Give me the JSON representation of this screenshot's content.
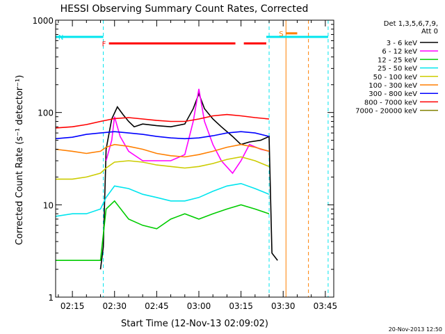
{
  "chart_data": {
    "type": "line",
    "title": "HESSI Observing Summary Count Rates, Corrected",
    "xlabel": "Start Time (12-Nov-13 02:09:02)",
    "ylabel": "Corrected Count Rate (s⁻¹ detector⁻¹)",
    "y_scale": "log",
    "ylim": [
      1,
      1000
    ],
    "xlim": [
      "02:09",
      "03:48"
    ],
    "x_ticks": [
      "02:15",
      "02:30",
      "02:45",
      "03:00",
      "03:15",
      "03:30",
      "03:45"
    ],
    "y_ticks": [
      {
        "value": 1,
        "label": "1"
      },
      {
        "value": 10,
        "label": "10"
      },
      {
        "value": 100,
        "label": "100"
      },
      {
        "value": 1000,
        "label": "1000"
      }
    ],
    "footer_date": "20-Nov-2013 12:50",
    "legend": {
      "header": [
        "Det 1,3,5,6,7,9,",
        "Att 0"
      ],
      "placement": "right"
    },
    "series": [
      {
        "name": "3 - 6 keV",
        "color": "#000000",
        "points": [
          [
            "02:25",
            2.0
          ],
          [
            "02:26",
            3.5
          ],
          [
            "02:27",
            40
          ],
          [
            "02:29",
            85
          ],
          [
            "02:31",
            115
          ],
          [
            "02:33",
            95
          ],
          [
            "02:35",
            80
          ],
          [
            "02:37",
            70
          ],
          [
            "02:40",
            75
          ],
          [
            "02:45",
            72
          ],
          [
            "02:50",
            70
          ],
          [
            "02:55",
            75
          ],
          [
            "02:58",
            110
          ],
          [
            "03:00",
            160
          ],
          [
            "03:02",
            110
          ],
          [
            "03:05",
            85
          ],
          [
            "03:08",
            70
          ],
          [
            "03:12",
            55
          ],
          [
            "03:15",
            45
          ],
          [
            "03:18",
            48
          ],
          [
            "03:22",
            50
          ],
          [
            "03:25",
            55
          ],
          [
            "03:26",
            3.0
          ],
          [
            "03:28",
            2.5
          ]
        ]
      },
      {
        "name": "6 - 12 keV",
        "color": "#ff00ff",
        "points": [
          [
            "02:27",
            30
          ],
          [
            "02:29",
            50
          ],
          [
            "02:30",
            90
          ],
          [
            "02:32",
            55
          ],
          [
            "02:35",
            38
          ],
          [
            "02:40",
            30
          ],
          [
            "02:45",
            30
          ],
          [
            "02:50",
            30
          ],
          [
            "02:55",
            35
          ],
          [
            "02:58",
            80
          ],
          [
            "03:00",
            180
          ],
          [
            "03:02",
            80
          ],
          [
            "03:05",
            45
          ],
          [
            "03:08",
            30
          ],
          [
            "03:12",
            22
          ],
          [
            "03:15",
            30
          ],
          [
            "03:18",
            45
          ],
          [
            "03:22",
            40
          ],
          [
            "03:25",
            38
          ]
        ]
      },
      {
        "name": "12 - 25 keV",
        "color": "#00cc00",
        "points": [
          [
            "02:09",
            2.5
          ],
          [
            "02:15",
            2.5
          ],
          [
            "02:21",
            2.5
          ],
          [
            "02:25",
            2.5
          ],
          [
            "02:27",
            9
          ],
          [
            "02:30",
            11
          ],
          [
            "02:35",
            7
          ],
          [
            "02:40",
            6
          ],
          [
            "02:45",
            5.5
          ],
          [
            "02:50",
            7
          ],
          [
            "02:55",
            8
          ],
          [
            "03:00",
            7
          ],
          [
            "03:05",
            8
          ],
          [
            "03:10",
            9
          ],
          [
            "03:15",
            10
          ],
          [
            "03:20",
            9
          ],
          [
            "03:25",
            8
          ]
        ]
      },
      {
        "name": "25 - 50 keV",
        "color": "#00e5ee",
        "points": [
          [
            "02:09",
            7.5
          ],
          [
            "02:15",
            8
          ],
          [
            "02:20",
            8
          ],
          [
            "02:25",
            9
          ],
          [
            "02:27",
            12
          ],
          [
            "02:30",
            16
          ],
          [
            "02:35",
            15
          ],
          [
            "02:40",
            13
          ],
          [
            "02:45",
            12
          ],
          [
            "02:50",
            11
          ],
          [
            "02:55",
            11
          ],
          [
            "03:00",
            12
          ],
          [
            "03:05",
            14
          ],
          [
            "03:10",
            16
          ],
          [
            "03:15",
            17
          ],
          [
            "03:20",
            15
          ],
          [
            "03:25",
            13
          ]
        ]
      },
      {
        "name": "50 - 100 keV",
        "color": "#cccc00",
        "points": [
          [
            "02:09",
            19
          ],
          [
            "02:15",
            19
          ],
          [
            "02:20",
            20
          ],
          [
            "02:25",
            22
          ],
          [
            "02:27",
            25
          ],
          [
            "02:30",
            29
          ],
          [
            "02:35",
            30
          ],
          [
            "02:40",
            29
          ],
          [
            "02:45",
            27
          ],
          [
            "02:50",
            26
          ],
          [
            "02:55",
            25
          ],
          [
            "03:00",
            26
          ],
          [
            "03:05",
            28
          ],
          [
            "03:10",
            31
          ],
          [
            "03:15",
            33
          ],
          [
            "03:20",
            30
          ],
          [
            "03:25",
            26
          ]
        ]
      },
      {
        "name": "100 - 300 keV",
        "color": "#ff7f00",
        "points": [
          [
            "02:09",
            40
          ],
          [
            "02:15",
            38
          ],
          [
            "02:20",
            36
          ],
          [
            "02:25",
            38
          ],
          [
            "02:27",
            42
          ],
          [
            "02:30",
            45
          ],
          [
            "02:35",
            43
          ],
          [
            "02:40",
            40
          ],
          [
            "02:45",
            36
          ],
          [
            "02:50",
            34
          ],
          [
            "02:55",
            33
          ],
          [
            "03:00",
            35
          ],
          [
            "03:05",
            38
          ],
          [
            "03:10",
            42
          ],
          [
            "03:15",
            45
          ],
          [
            "03:20",
            42
          ],
          [
            "03:25",
            38
          ]
        ]
      },
      {
        "name": "300 - 800 keV",
        "color": "#0000ff",
        "points": [
          [
            "02:09",
            52
          ],
          [
            "02:15",
            54
          ],
          [
            "02:20",
            58
          ],
          [
            "02:25",
            60
          ],
          [
            "02:30",
            62
          ],
          [
            "02:35",
            60
          ],
          [
            "02:40",
            58
          ],
          [
            "02:45",
            55
          ],
          [
            "02:50",
            53
          ],
          [
            "02:55",
            52
          ],
          [
            "03:00",
            53
          ],
          [
            "03:05",
            56
          ],
          [
            "03:10",
            60
          ],
          [
            "03:15",
            62
          ],
          [
            "03:20",
            60
          ],
          [
            "03:25",
            55
          ]
        ]
      },
      {
        "name": "800 - 7000 keV",
        "color": "#ff0000",
        "points": [
          [
            "02:09",
            68
          ],
          [
            "02:15",
            70
          ],
          [
            "02:20",
            74
          ],
          [
            "02:25",
            80
          ],
          [
            "02:30",
            86
          ],
          [
            "02:35",
            88
          ],
          [
            "02:40",
            85
          ],
          [
            "02:45",
            82
          ],
          [
            "02:50",
            80
          ],
          [
            "02:55",
            80
          ],
          [
            "03:00",
            85
          ],
          [
            "03:05",
            92
          ],
          [
            "03:10",
            95
          ],
          [
            "03:15",
            92
          ],
          [
            "03:20",
            88
          ],
          [
            "03:25",
            85
          ]
        ]
      },
      {
        "name": "7000 - 20000 keV",
        "color": "#808000",
        "points": []
      }
    ],
    "flags": [
      {
        "label": "F",
        "color": "#ff0000",
        "segments": [
          [
            "02:28",
            "03:13"
          ],
          [
            "03:16",
            "03:24"
          ]
        ],
        "level": 560
      },
      {
        "label": "N",
        "color": "#00e5ee",
        "segments": [
          [
            "02:09",
            "02:26"
          ],
          [
            "03:24",
            "03:46"
          ]
        ],
        "level": 660
      },
      {
        "label": "S",
        "color": "#ff7f00",
        "segments": [
          [
            "03:31",
            "03:35"
          ]
        ],
        "level": 720
      }
    ],
    "vertical_markers": [
      {
        "time": "02:26",
        "color": "#00e5ee",
        "style": "dashed"
      },
      {
        "time": "03:25",
        "color": "#00e5ee",
        "style": "dashed"
      },
      {
        "time": "03:31",
        "color": "#ff7f00",
        "style": "solid"
      },
      {
        "time": "03:39",
        "color": "#ff7f00",
        "style": "dashed"
      },
      {
        "time": "03:46",
        "color": "#00e5ee",
        "style": "dashed"
      }
    ]
  }
}
